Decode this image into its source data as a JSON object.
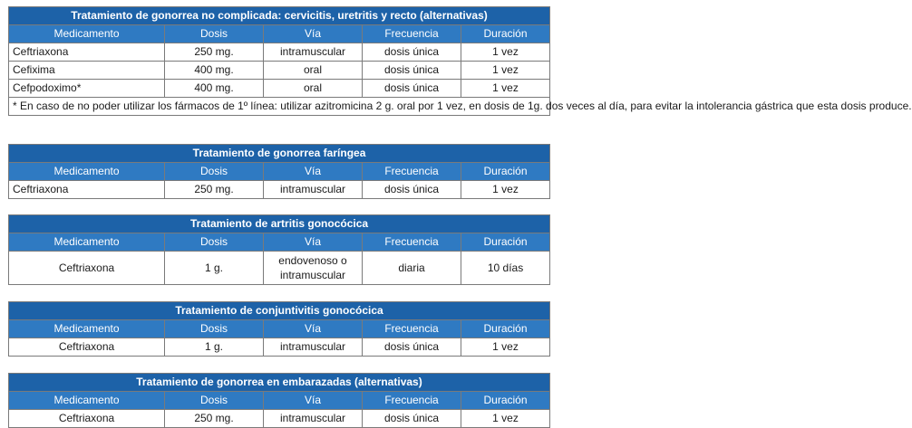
{
  "tables": [
    {
      "title": "Tratamiento de gonorrea no complicada: cervicitis, uretritis y recto (alternativas)",
      "headers": [
        "Medicamento",
        "Dosis",
        "Vía",
        "Frecuencia",
        "Duración"
      ],
      "rows": [
        [
          "Ceftriaxona",
          "250 mg.",
          "intramuscular",
          "dosis única",
          "1 vez"
        ],
        [
          "Cefixima",
          "400 mg.",
          "oral",
          "dosis única",
          "1 vez"
        ],
        [
          "Cefpodoximo*",
          "400 mg.",
          "oral",
          "dosis única",
          "1 vez"
        ]
      ],
      "note": "* En caso de no poder utilizar los fármacos de 1º línea: utilizar azitromicina 2 g. oral por 1 vez, en dosis de 1g. dos veces al día, para evitar la intolerancia gástrica que esta dosis produce."
    },
    {
      "title": "Tratamiento de gonorrea faríngea",
      "headers": [
        "Medicamento",
        "Dosis",
        "Vía",
        "Frecuencia",
        "Duración"
      ],
      "rows": [
        [
          "Ceftriaxona",
          "250 mg.",
          "intramuscular",
          "dosis única",
          "1 vez"
        ]
      ]
    },
    {
      "title": "Tratamiento de artritis gonocócica",
      "headers": [
        "Medicamento",
        "Dosis",
        "Vía",
        "Frecuencia",
        "Duración"
      ],
      "rows": [
        [
          "Ceftriaxona",
          "1 g.",
          "endovenoso o intramuscular",
          "diaria",
          "10 días"
        ]
      ]
    },
    {
      "title": "Tratamiento de conjuntivitis gonocócica",
      "headers": [
        "Medicamento",
        "Dosis",
        "Vía",
        "Frecuencia",
        "Duración"
      ],
      "rows": [
        [
          "Ceftriaxona",
          "1 g.",
          "intramuscular",
          "dosis única",
          "1 vez"
        ]
      ]
    },
    {
      "title": "Tratamiento de gonorrea en embarazadas (alternativas)",
      "headers": [
        "Medicamento",
        "Dosis",
        "Vía",
        "Frecuencia",
        "Duración"
      ],
      "rows": [
        [
          "Ceftriaxona",
          "250 mg.",
          "intramuscular",
          "dosis única",
          "1 vez"
        ]
      ]
    }
  ]
}
